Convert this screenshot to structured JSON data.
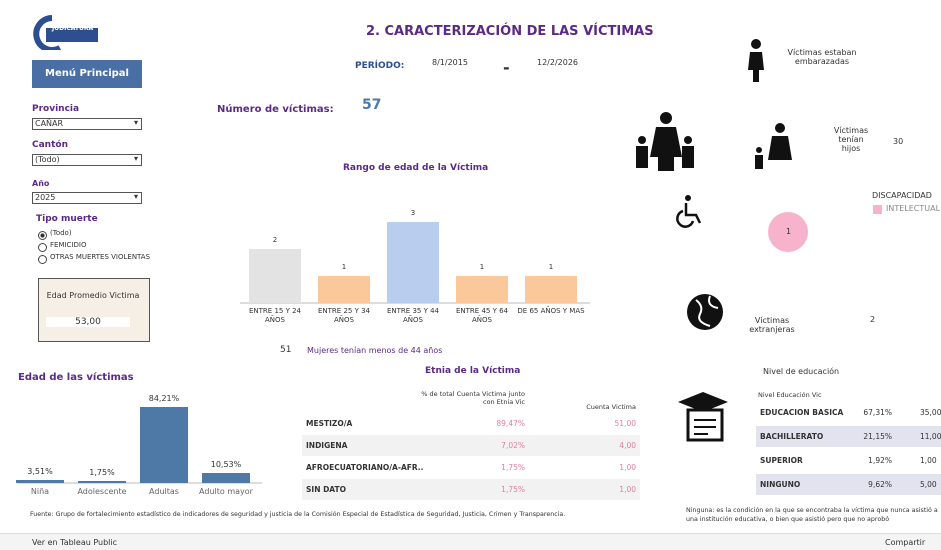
{
  "logo": {
    "line1": "CONSEJO DE LA",
    "line2": "JUDICATURA"
  },
  "menu_button": "Menú Principal",
  "filters": {
    "provincia": {
      "label": "Provincia",
      "value": "CAÑAR"
    },
    "canton": {
      "label": "Cantón",
      "value": "(Todo)"
    },
    "anio": {
      "label": "Año",
      "value": "2025"
    },
    "tipo_muerte": {
      "label": "Tipo muerte",
      "options": [
        "(Todo)",
        "FEMICIDIO",
        "OTRAS MUERTES VIOLENTAS"
      ]
    }
  },
  "edad_promedio": {
    "label": "Edad Promedio Victima",
    "value": "53,00"
  },
  "title": "2. CARACTERIZACIÓN DE LAS VÍCTIMAS",
  "periodo": {
    "label": "PERÍODO:",
    "start": "8/1/2015",
    "separator": "-",
    "end": "12/2/2026"
  },
  "numero_victimas": {
    "label": "Número de víctimas:",
    "value": "57"
  },
  "kpis": {
    "embarazadas": {
      "label": "Víctimas estaban embarazadas"
    },
    "hijos": {
      "label": "Víctimas tenían hijos",
      "value": "30"
    },
    "extranjeras": {
      "label": "Víctimas extranjeras",
      "value": "2"
    }
  },
  "discapacidad": {
    "title": "DISCAPACIDAD",
    "legend": "INTELECTUAL",
    "value": 1,
    "color": "#f7b3cb"
  },
  "menores_44": {
    "value": "51",
    "label": "Mujeres tenían menos de 44 años"
  },
  "chart_data": [
    {
      "type": "bar",
      "title": "Rango de edad de la Víctima",
      "categories": [
        "ENTRE 15 Y 24 AÑOS",
        "ENTRE 25 Y 34 AÑOS",
        "ENTRE 35 Y 44 AÑOS",
        "ENTRE 45 Y 64 AÑOS",
        "DE 65 AÑOS Y MAS"
      ],
      "values": [
        2,
        1,
        3,
        1,
        1
      ],
      "colors": [
        "#e3e3e3",
        "#fbc89c",
        "#b9cdee",
        "#fbc89c",
        "#fbc89c"
      ]
    },
    {
      "type": "bar",
      "title": "Edad de las víctimas",
      "categories": [
        "Niña",
        "Adolescente",
        "Adultas",
        "Adulto mayor"
      ],
      "values": [
        3.51,
        1.75,
        84.21,
        10.53
      ],
      "value_labels": [
        "3,51%",
        "1,75%",
        "84,21%",
        "10,53%"
      ],
      "color": "#4e79a7"
    }
  ],
  "etnia_table": {
    "title": "Etnia de la Víctima",
    "headers": [
      "% de total Cuenta Victima junto con Etnia Vic",
      "Cuenta Victima"
    ],
    "rows": [
      [
        "MESTIZO/A",
        "89,47%",
        "51,00"
      ],
      [
        "INDIGENA",
        "7,02%",
        "4,00"
      ],
      [
        "AFROECUATORIANO/A-AFR..",
        "1,75%",
        "1,00"
      ],
      [
        "SIN DATO",
        "1,75%",
        "1,00"
      ]
    ]
  },
  "educacion_table": {
    "title": "Nivel de educación",
    "header": "Nivel Educación Vic",
    "rows": [
      [
        "EDUCACION BASICA",
        "67,31%",
        "35,00"
      ],
      [
        "BACHILLERATO",
        "21,15%",
        "11,00"
      ],
      [
        "SUPERIOR",
        "1,92%",
        "1,00"
      ],
      [
        "NINGUNO",
        "9,62%",
        "5,00"
      ]
    ]
  },
  "footnotes": {
    "fuente": "Fuente: Grupo de fortalecimiento estadístico de indicadores de seguridad y justicia de la Comisión Especial de Estadística de Seguridad, Justicia, Crimen y Transparencia.",
    "ninguna": "Ninguna: es la condición en la que se encontraba la víctima que nunca asistió a una institución educativa, o bien que asistió pero que no aprobó"
  },
  "toolbar": {
    "tableau": "Ver en Tableau Public",
    "share": "Compartir"
  }
}
